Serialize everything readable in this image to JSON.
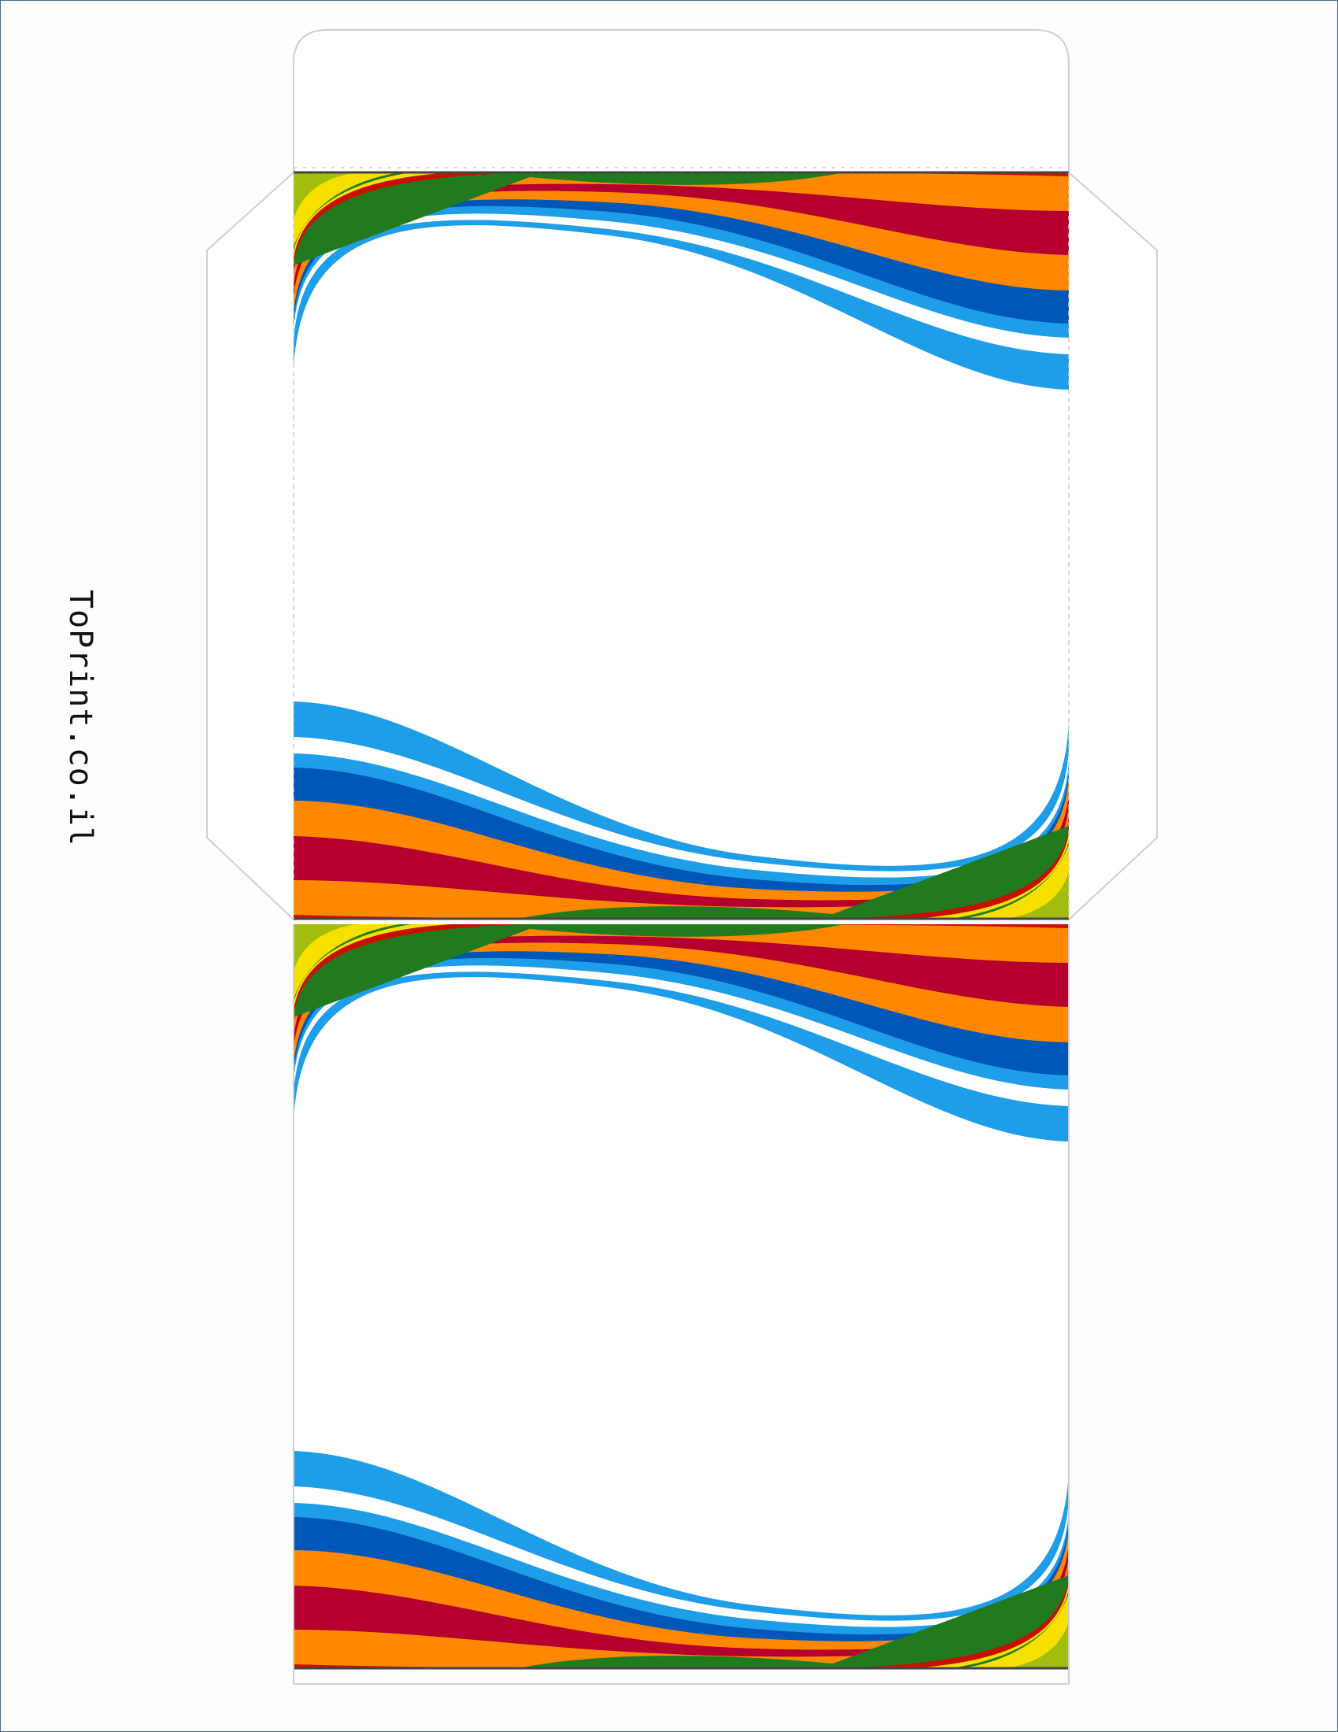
{
  "brand": {
    "text": "ToPrint.co.il"
  },
  "colors": {
    "light_blue": "#1e9de8",
    "dark_blue": "#0057b8",
    "orange": "#ff8800",
    "crimson": "#b5002f",
    "red": "#c81000",
    "green": "#217a1e",
    "yellow": "#f7e000",
    "yellow_green": "#a2bd0d",
    "outline": "#cfcfcf"
  }
}
